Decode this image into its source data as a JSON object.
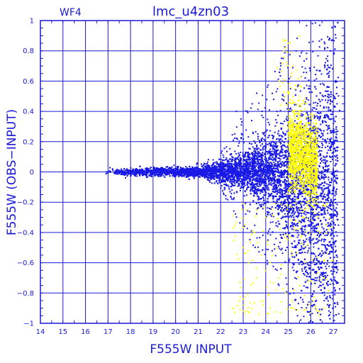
{
  "chart_data": {
    "type": "scatter",
    "panel_label": "WF4",
    "title": "lmc_u4zn03",
    "xlabel": "F555W INPUT",
    "ylabel": "F555W (OBS−INPUT)",
    "xlim": [
      14,
      27.5
    ],
    "ylim": [
      -1,
      1
    ],
    "x_ticks": [
      14,
      15,
      16,
      17,
      18,
      19,
      20,
      21,
      22,
      23,
      24,
      25,
      26,
      27
    ],
    "y_ticks": [
      1,
      0.8,
      0.6,
      0.4,
      0.2,
      0,
      -0.2,
      -0.4,
      -0.6,
      -0.8,
      -1
    ],
    "y_tick_labels": [
      "1",
      "0.8",
      "0.6",
      "0.4",
      "0.2",
      "0",
      "−0.2",
      "−0.4",
      "−0.6",
      "−0.8",
      "−1"
    ],
    "grid": true,
    "colors": {
      "axes": "#1a1ad6",
      "main_points": "#1a1ae6",
      "highlight_points": "#ffff00",
      "background": "#ffffff"
    },
    "series": [
      {
        "color": "#1a1ae6",
        "description_points": [
          [
            17.0,
            0.0
          ],
          [
            17.2,
            0.02
          ],
          [
            17.5,
            -0.01
          ],
          [
            17.8,
            0.01
          ],
          [
            18.0,
            0.0
          ],
          [
            18.3,
            0.01
          ],
          [
            18.6,
            -0.01
          ],
          [
            19.0,
            0.01
          ],
          [
            19.4,
            -0.01
          ],
          [
            19.8,
            0.01
          ],
          [
            20.2,
            -0.01
          ],
          [
            20.6,
            0.02
          ],
          [
            21.0,
            -0.02
          ],
          [
            21.4,
            0.02
          ],
          [
            21.8,
            -0.03
          ],
          [
            22.2,
            0.04
          ],
          [
            22.5,
            -0.05
          ],
          [
            22.8,
            0.06
          ],
          [
            23.0,
            -0.08
          ],
          [
            23.3,
            0.08
          ],
          [
            23.5,
            -0.1
          ],
          [
            23.8,
            0.1
          ],
          [
            24.0,
            -0.15
          ],
          [
            24.2,
            0.15
          ],
          [
            24.4,
            -0.2
          ],
          [
            24.6,
            0.2
          ],
          [
            24.8,
            -0.25
          ],
          [
            25.0,
            0.25
          ],
          [
            25.2,
            -0.35
          ],
          [
            25.4,
            0.3
          ],
          [
            25.6,
            -0.5
          ],
          [
            25.8,
            0.35
          ],
          [
            26.0,
            -0.6
          ],
          [
            26.2,
            0.3
          ],
          [
            26.4,
            -0.75
          ],
          [
            26.6,
            -0.85
          ],
          [
            26.8,
            -0.95
          ],
          [
            22.7,
            0.4
          ],
          [
            23.4,
            0.45
          ],
          [
            24.1,
            -0.45
          ],
          [
            24.5,
            0.4
          ],
          [
            25.1,
            0.55
          ],
          [
            25.3,
            -0.7
          ],
          [
            25.9,
            0.55
          ],
          [
            26.5,
            -0.55
          ],
          [
            27.0,
            -0.9
          ],
          [
            23.6,
            0.52
          ],
          [
            22.9,
            0.35
          ]
        ]
      },
      {
        "color": "#ffff00",
        "description_points": [
          [
            25.2,
            0.4
          ],
          [
            25.4,
            0.35
          ],
          [
            25.5,
            0.25
          ],
          [
            25.6,
            0.2
          ],
          [
            25.7,
            0.15
          ],
          [
            25.8,
            0.1
          ],
          [
            25.9,
            0.05
          ],
          [
            26.0,
            0.0
          ],
          [
            25.5,
            0.5
          ],
          [
            25.3,
            0.55
          ],
          [
            24.8,
            0.8
          ],
          [
            25.0,
            0.85
          ],
          [
            25.1,
            0.3
          ],
          [
            25.9,
            0.2
          ],
          [
            24.6,
            0.6
          ],
          [
            25.2,
            0.7
          ],
          [
            26.1,
            -0.05
          ],
          [
            23.5,
            -0.4
          ],
          [
            23.8,
            -0.55
          ],
          [
            24.2,
            -0.6
          ],
          [
            24.6,
            -0.7
          ],
          [
            24.9,
            -0.8
          ],
          [
            25.5,
            -0.75
          ],
          [
            26.1,
            -0.85
          ],
          [
            26.4,
            -0.4
          ],
          [
            26.6,
            -0.9
          ],
          [
            23.0,
            -0.5
          ],
          [
            22.8,
            -0.85
          ],
          [
            24.0,
            -0.3
          ],
          [
            25.6,
            0.45
          ],
          [
            25.8,
            0.3
          ],
          [
            25.7,
            -0.3
          ],
          [
            26.2,
            0.15
          ]
        ]
      }
    ]
  }
}
